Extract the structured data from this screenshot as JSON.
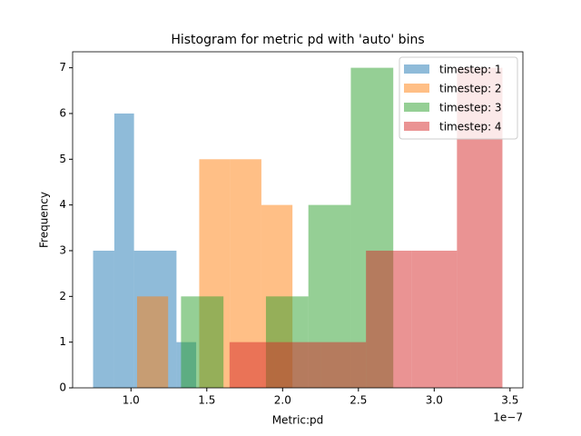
{
  "chart_data": {
    "type": "histogram",
    "title": "Histogram for metric pd with 'auto' bins",
    "x_label": "Metric:pd",
    "y_label": "Frequency",
    "x_offset_label": "1e−7",
    "xlim": [
      0.615,
      3.585
    ],
    "ylim": [
      0,
      7.35
    ],
    "xticks": [
      {
        "value": 1,
        "label": "1.0"
      },
      {
        "value": 1.5,
        "label": "1.5"
      },
      {
        "value": 2,
        "label": "2.0"
      },
      {
        "value": 2.5,
        "label": "2.5"
      },
      {
        "value": 3,
        "label": "3.0"
      },
      {
        "value": 3.5,
        "label": "3.5"
      }
    ],
    "yticks": [
      0,
      1,
      2,
      3,
      4,
      5,
      6,
      7
    ],
    "legend": "upper right",
    "opacity": 0.5,
    "series": [
      {
        "name": "timestep: 1",
        "color": "#1f77b4",
        "bins": [
          0.75,
          0.89,
          1.02,
          1.16,
          1.3,
          1.43
        ],
        "values": [
          3,
          6,
          3,
          3,
          1
        ]
      },
      {
        "name": "timestep: 2",
        "color": "#ff7f0e",
        "bins": [
          1.04,
          1.245,
          1.45,
          1.655,
          1.86,
          2.065
        ],
        "values": [
          2,
          0,
          5,
          5,
          4
        ]
      },
      {
        "name": "timestep: 3",
        "color": "#2ca02c",
        "bins": [
          1.33,
          1.61,
          1.89,
          2.17,
          2.45,
          2.73
        ],
        "values": [
          2,
          0,
          2,
          4,
          7
        ]
      },
      {
        "name": "timestep: 4",
        "color": "#d62728",
        "bins": [
          1.65,
          1.95,
          2.25,
          2.55,
          2.85,
          3.15,
          3.45
        ],
        "values": [
          1,
          1,
          1,
          3,
          3,
          7
        ]
      }
    ]
  }
}
